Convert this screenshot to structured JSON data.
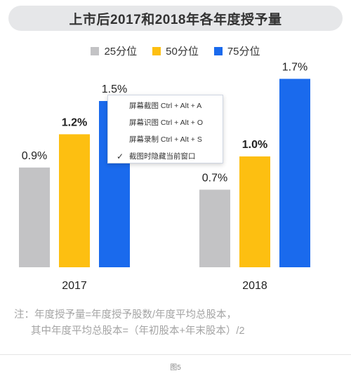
{
  "title": "上市后2017和2018年各年度授予量",
  "colors": {
    "p25": "#c3c3c5",
    "p50": "#fdbf11",
    "p75": "#1a6aed",
    "label": "#222222"
  },
  "chart_data": {
    "type": "bar",
    "title": "上市后2017和2018年各年度授予量",
    "categories": [
      "2017",
      "2018"
    ],
    "series": [
      {
        "name": "25分位",
        "values": [
          0.9,
          0.7
        ],
        "labels": [
          "0.9%",
          "0.7%"
        ]
      },
      {
        "name": "50分位",
        "values": [
          1.2,
          1.0
        ],
        "labels": [
          "1.2%",
          "1.0%"
        ]
      },
      {
        "name": "75分位",
        "values": [
          1.5,
          1.7
        ],
        "labels": [
          "1.5%",
          "1.7%"
        ]
      }
    ],
    "unit": "%",
    "ylim": [
      0,
      1.7
    ],
    "legend_position": "top",
    "grid": false
  },
  "context_menu": {
    "items": [
      {
        "label": "屏幕截图 Ctrl + Alt + A",
        "checked": false
      },
      {
        "label": "屏幕识图 Ctrl + Alt + O",
        "checked": false
      },
      {
        "label": "屏幕录制 Ctrl + Alt + S",
        "checked": false
      },
      {
        "label": "截图时隐藏当前窗口",
        "checked": true
      }
    ]
  },
  "note": {
    "line1": "注：年度授予量=年度授予股数/年度平均总股本，",
    "line2": "其中年度平均总股本=（年初股本+年末股本）/2"
  },
  "caption": "图5"
}
